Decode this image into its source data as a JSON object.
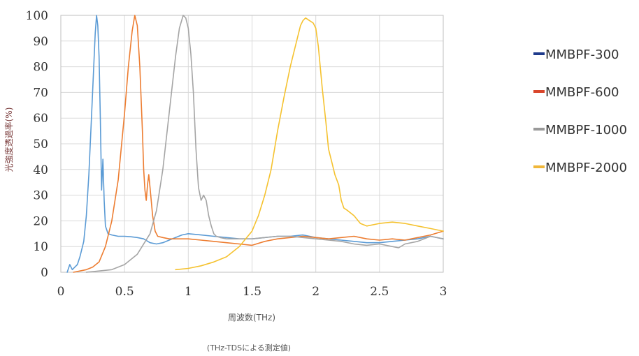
{
  "chart_data": {
    "type": "line",
    "title": "",
    "xlabel": "周波数(THz)",
    "ylabel": "光強度透過率(%)",
    "note": "(THz-TDSによる測定値)",
    "xlim": [
      0,
      3
    ],
    "ylim": [
      0,
      100
    ],
    "xticks": [
      0,
      0.5,
      1,
      1.5,
      2,
      2.5,
      3
    ],
    "xtick_labels": [
      "0",
      "0.5",
      "1",
      "1.5",
      "2",
      "2.5",
      "3"
    ],
    "yticks": [
      0,
      10,
      20,
      30,
      40,
      50,
      60,
      70,
      80,
      90,
      100
    ],
    "ytick_labels": [
      "0",
      "10",
      "20",
      "30",
      "40",
      "50",
      "60",
      "70",
      "80",
      "90",
      "100"
    ],
    "grid": true,
    "legend_position": "right",
    "legend": [
      {
        "label": "MMBPF-300",
        "color": "#1f3b8c"
      },
      {
        "label": "MMBPF-600",
        "color": "#d9452b"
      },
      {
        "label": "MMBPF-1000",
        "color": "#9a9a9a"
      },
      {
        "label": "MMBPF-2000",
        "color": "#f0b73a"
      }
    ],
    "series": [
      {
        "color": "#5b9bd5",
        "x": [
          0.05,
          0.07,
          0.09,
          0.11,
          0.13,
          0.15,
          0.18,
          0.2,
          0.22,
          0.24,
          0.26,
          0.27,
          0.28,
          0.29,
          0.3,
          0.31,
          0.32,
          0.33,
          0.34,
          0.35,
          0.37,
          0.4,
          0.45,
          0.5,
          0.55,
          0.6,
          0.65,
          0.7,
          0.75,
          0.8,
          0.85,
          0.9,
          0.95,
          1.0,
          1.1,
          1.2,
          1.3,
          1.4,
          1.5,
          1.6,
          1.7,
          1.8,
          1.9,
          2.0,
          2.1,
          2.2,
          2.3,
          2.4,
          2.5,
          2.6,
          2.7,
          2.8,
          2.9,
          3.0
        ],
        "y": [
          0,
          3,
          1,
          2,
          3,
          6,
          12,
          22,
          38,
          60,
          82,
          93,
          100,
          96,
          84,
          60,
          32,
          44,
          28,
          18,
          15,
          14.5,
          14,
          14,
          13.8,
          13.5,
          13,
          11.5,
          11,
          11.5,
          12.5,
          13.5,
          14.5,
          15,
          14.5,
          14,
          13.5,
          13,
          13,
          13.5,
          14,
          14,
          14.5,
          13.5,
          13,
          12.5,
          12,
          11.5,
          11.5,
          12,
          12.5,
          13,
          14,
          13
        ]
      },
      {
        "color": "#ed7d31",
        "x": [
          0.1,
          0.15,
          0.2,
          0.25,
          0.3,
          0.35,
          0.4,
          0.45,
          0.5,
          0.53,
          0.56,
          0.58,
          0.6,
          0.62,
          0.64,
          0.65,
          0.66,
          0.67,
          0.68,
          0.69,
          0.7,
          0.72,
          0.74,
          0.76,
          0.8,
          0.85,
          0.9,
          1.0,
          1.1,
          1.2,
          1.3,
          1.4,
          1.5,
          1.6,
          1.7,
          1.8,
          1.9,
          2.0,
          2.1,
          2.2,
          2.3,
          2.4,
          2.5,
          2.6,
          2.7,
          2.8,
          2.9,
          3.0
        ],
        "y": [
          0,
          0.5,
          1,
          2,
          4,
          10,
          20,
          36,
          62,
          80,
          94,
          100,
          96,
          80,
          55,
          40,
          32,
          28,
          34,
          38,
          33,
          22,
          16,
          14,
          13.5,
          13,
          13,
          13,
          12.5,
          12,
          11.5,
          11,
          10.5,
          12,
          13,
          13.5,
          14,
          13.5,
          13,
          13.5,
          14,
          13,
          12.5,
          13,
          12.5,
          13.5,
          14.5,
          16
        ]
      },
      {
        "color": "#a5a5a5",
        "x": [
          0.2,
          0.3,
          0.4,
          0.5,
          0.6,
          0.7,
          0.75,
          0.8,
          0.85,
          0.9,
          0.93,
          0.96,
          0.98,
          1.0,
          1.02,
          1.04,
          1.06,
          1.08,
          1.1,
          1.12,
          1.14,
          1.16,
          1.18,
          1.2,
          1.22,
          1.25,
          1.3,
          1.4,
          1.5,
          1.6,
          1.7,
          1.8,
          1.9,
          2.0,
          2.1,
          2.2,
          2.3,
          2.4,
          2.5,
          2.6,
          2.65,
          2.7,
          2.8,
          2.9,
          3.0
        ],
        "y": [
          0,
          0.5,
          1,
          3,
          7,
          15,
          24,
          40,
          62,
          84,
          95,
          100,
          99,
          95,
          85,
          70,
          48,
          33,
          28,
          30,
          28,
          22,
          18,
          15,
          14,
          13.5,
          13,
          13,
          13,
          13.5,
          14,
          14,
          13.5,
          13,
          12.5,
          12,
          11,
          10.5,
          11,
          10,
          9.5,
          11,
          12,
          14,
          13
        ]
      },
      {
        "color": "#f5c22f",
        "x": [
          0.9,
          1.0,
          1.1,
          1.2,
          1.3,
          1.4,
          1.5,
          1.55,
          1.6,
          1.65,
          1.7,
          1.75,
          1.8,
          1.85,
          1.88,
          1.9,
          1.92,
          1.95,
          1.98,
          2.0,
          2.02,
          2.05,
          2.08,
          2.1,
          2.13,
          2.15,
          2.18,
          2.2,
          2.22,
          2.25,
          2.3,
          2.35,
          2.4,
          2.5,
          2.6,
          2.7,
          2.8,
          2.9,
          3.0
        ],
        "y": [
          1,
          1.5,
          2.5,
          4,
          6,
          10,
          16,
          22,
          30,
          40,
          55,
          68,
          80,
          90,
          96,
          98,
          99,
          98,
          97,
          95,
          88,
          72,
          58,
          48,
          42,
          38,
          34,
          28,
          25,
          24,
          22,
          19,
          18,
          19,
          19.5,
          19,
          18,
          17,
          16
        ]
      }
    ]
  }
}
